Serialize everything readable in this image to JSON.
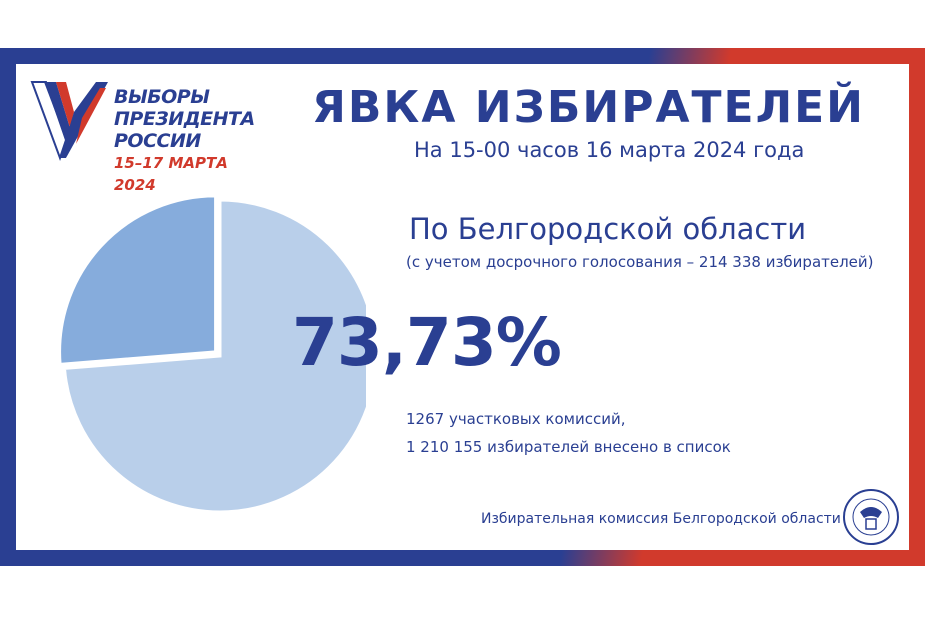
{
  "logo": {
    "lines": [
      "ВЫБОРЫ",
      "ПРЕЗИДЕНТА",
      "РОССИИ"
    ],
    "dates": "15–17 МАРТА 2024",
    "colors": {
      "white": "#ffffff",
      "blue": "#2a3f92",
      "red": "#d13a2c"
    }
  },
  "header": {
    "title": "ЯВКА ИЗБИРАТЕЛЕЙ",
    "subtitle": "На 15-00 часов 16 марта 2024 года"
  },
  "summary": {
    "region": "По Белгородской области",
    "note": "(с учетом досрочного голосования – 214 338 избирателей)",
    "percentage": "73,73%",
    "commissions": "1267 участковых комиссий,",
    "voters_listed": "1 210 155 избирателей внесено в список"
  },
  "footer": {
    "organization": "Избирательная комиссия Белгородской области",
    "seal_icon": "election-commission-seal-icon"
  },
  "colors": {
    "brand_blue": "#2a3f92",
    "brand_red": "#d13a2c",
    "pie_turnout": "#b9cfea",
    "pie_remainder": "#86acdc"
  },
  "chart_data": {
    "type": "pie",
    "slices": [
      {
        "value": 73.73,
        "color": "#b9cfea"
      },
      {
        "value": 26.27,
        "color": "#86acdc"
      }
    ]
  }
}
